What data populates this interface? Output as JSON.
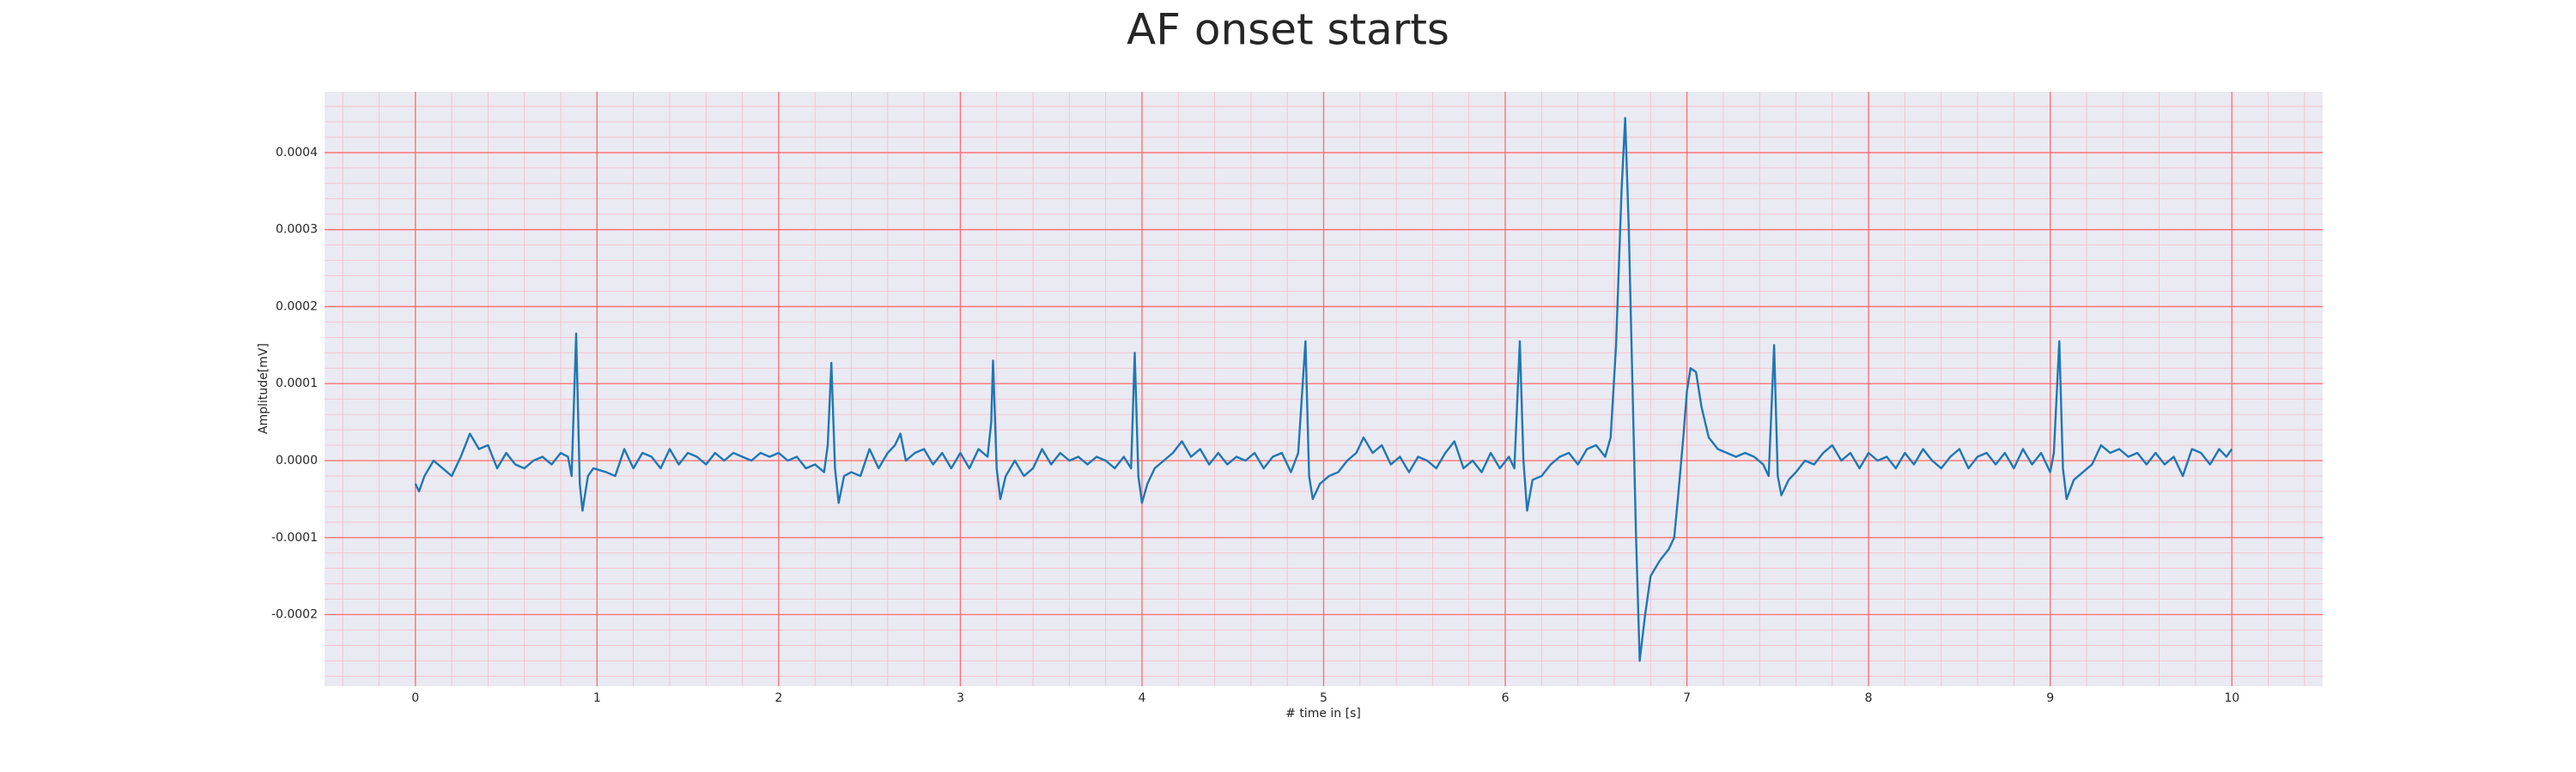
{
  "chart_data": {
    "type": "line",
    "title": "AF onset starts",
    "xlabel": "# time in [s]",
    "ylabel": "Amplitude[mV]",
    "xlim": [
      -0.5,
      10.5
    ],
    "ylim": [
      -0.000293,
      0.000479
    ],
    "xticks": [
      0,
      1,
      2,
      3,
      4,
      5,
      6,
      7,
      8,
      9,
      10
    ],
    "yticks": [
      {
        "value": -0.0002,
        "label": "-0.0002"
      },
      {
        "value": -0.0001,
        "label": "-0.0001"
      },
      {
        "value": 0,
        "label": "0.0000"
      },
      {
        "value": 0.0001,
        "label": "0.0001"
      },
      {
        "value": 0.0002,
        "label": "0.0002"
      },
      {
        "value": 0.0003,
        "label": "0.0003"
      },
      {
        "value": 0.0004,
        "label": "0.0004"
      }
    ],
    "grid": true,
    "minor_grid": true,
    "grid_color": "#ff6b6b",
    "minor_grid_color": "#f7bcc8",
    "background": "#eaeaf2",
    "x": [
      0,
      0.02,
      0.05,
      0.1,
      0.15,
      0.2,
      0.25,
      0.3,
      0.35,
      0.4,
      0.45,
      0.5,
      0.55,
      0.6,
      0.65,
      0.7,
      0.75,
      0.8,
      0.84,
      0.86,
      0.885,
      0.905,
      0.92,
      0.95,
      0.98,
      1.05,
      1.1,
      1.15,
      1.2,
      1.25,
      1.3,
      1.35,
      1.4,
      1.45,
      1.5,
      1.55,
      1.6,
      1.65,
      1.7,
      1.75,
      1.8,
      1.85,
      1.9,
      1.95,
      2.0,
      2.05,
      2.1,
      2.15,
      2.2,
      2.25,
      2.27,
      2.29,
      2.31,
      2.33,
      2.36,
      2.4,
      2.45,
      2.5,
      2.55,
      2.6,
      2.64,
      2.67,
      2.7,
      2.75,
      2.8,
      2.85,
      2.9,
      2.95,
      3.0,
      3.05,
      3.1,
      3.15,
      3.17,
      3.18,
      3.2,
      3.22,
      3.25,
      3.3,
      3.35,
      3.4,
      3.45,
      3.5,
      3.55,
      3.6,
      3.65,
      3.7,
      3.75,
      3.8,
      3.85,
      3.9,
      3.94,
      3.96,
      3.98,
      4.0,
      4.03,
      4.07,
      4.12,
      4.17,
      4.22,
      4.27,
      4.32,
      4.37,
      4.42,
      4.47,
      4.52,
      4.57,
      4.62,
      4.67,
      4.72,
      4.77,
      4.82,
      4.86,
      4.9,
      4.92,
      4.94,
      4.98,
      5.03,
      5.08,
      5.13,
      5.18,
      5.22,
      5.27,
      5.32,
      5.37,
      5.42,
      5.47,
      5.52,
      5.57,
      5.62,
      5.67,
      5.72,
      5.77,
      5.82,
      5.87,
      5.92,
      5.97,
      6.02,
      6.05,
      6.08,
      6.1,
      6.12,
      6.15,
      6.2,
      6.25,
      6.3,
      6.35,
      6.4,
      6.45,
      6.5,
      6.55,
      6.58,
      6.61,
      6.64,
      6.66,
      6.68,
      6.7,
      6.72,
      6.74,
      6.77,
      6.8,
      6.85,
      6.9,
      6.93,
      6.95,
      6.98,
      7.0,
      7.02,
      7.05,
      7.08,
      7.12,
      7.17,
      7.22,
      7.27,
      7.32,
      7.37,
      7.42,
      7.45,
      7.48,
      7.5,
      7.52,
      7.56,
      7.6,
      7.65,
      7.7,
      7.75,
      7.8,
      7.85,
      7.9,
      7.95,
      8.0,
      8.05,
      8.1,
      8.15,
      8.2,
      8.25,
      8.3,
      8.35,
      8.4,
      8.45,
      8.5,
      8.55,
      8.6,
      8.65,
      8.7,
      8.75,
      8.8,
      8.85,
      8.9,
      8.95,
      9.0,
      9.02,
      9.05,
      9.07,
      9.09,
      9.13,
      9.18,
      9.23,
      9.28,
      9.33,
      9.38,
      9.43,
      9.48,
      9.53,
      9.58,
      9.63,
      9.68,
      9.73,
      9.78,
      9.83,
      9.88,
      9.93,
      9.97,
      10.0
    ],
    "series": [
      {
        "color": "#1f77b4",
        "values": [
          -3e-05,
          -4e-05,
          -2e-05,
          0.0,
          -1e-05,
          -2e-05,
          5e-06,
          3.5e-05,
          1.5e-05,
          2e-05,
          -1e-05,
          1e-05,
          -5e-06,
          -1e-05,
          0.0,
          5e-06,
          -5e-06,
          1e-05,
          5e-06,
          -2e-05,
          0.000165,
          -3e-05,
          -6.5e-05,
          -2e-05,
          -1e-05,
          -1.5e-05,
          -2e-05,
          1.5e-05,
          -1e-05,
          1e-05,
          5e-06,
          -1e-05,
          1.5e-05,
          -5e-06,
          1e-05,
          5e-06,
          -5e-06,
          1e-05,
          0.0,
          1e-05,
          5e-06,
          0.0,
          1e-05,
          5e-06,
          1e-05,
          0.0,
          5e-06,
          -1e-05,
          -5e-06,
          -1.5e-05,
          2e-05,
          0.000127,
          -1e-05,
          -5.5e-05,
          -2e-05,
          -1.5e-05,
          -2e-05,
          1.5e-05,
          -1e-05,
          1e-05,
          2e-05,
          3.5e-05,
          0.0,
          1e-05,
          1.5e-05,
          -5e-06,
          1e-05,
          -1e-05,
          1e-05,
          -1e-05,
          1.5e-05,
          5e-06,
          5e-05,
          0.00013,
          -1e-05,
          -5e-05,
          -2e-05,
          0.0,
          -2e-05,
          -1e-05,
          1.5e-05,
          -5e-06,
          1e-05,
          0.0,
          5e-06,
          -5e-06,
          5e-06,
          0.0,
          -1e-05,
          5e-06,
          -1e-05,
          0.00014,
          -2e-05,
          -5.5e-05,
          -3e-05,
          -1e-05,
          0.0,
          1e-05,
          2.5e-05,
          5e-06,
          1.5e-05,
          -5e-06,
          1e-05,
          -5e-06,
          5e-06,
          0.0,
          1e-05,
          -1e-05,
          5e-06,
          1e-05,
          -1.5e-05,
          1e-05,
          0.000155,
          -2e-05,
          -5e-05,
          -3e-05,
          -2e-05,
          -1.5e-05,
          0.0,
          1e-05,
          3e-05,
          1e-05,
          2e-05,
          -5e-06,
          5e-06,
          -1.5e-05,
          5e-06,
          0.0,
          -1e-05,
          1e-05,
          2.5e-05,
          -1e-05,
          0.0,
          -1.5e-05,
          1e-05,
          -1e-05,
          5e-06,
          -1e-05,
          0.000155,
          0.0,
          -6.5e-05,
          -2.5e-05,
          -2e-05,
          -5e-06,
          5e-06,
          1e-05,
          -5e-06,
          1.5e-05,
          2e-05,
          5e-06,
          3e-05,
          0.00015,
          0.00035,
          0.000445,
          0.0003,
          0.0001,
          -0.0001,
          -0.00026,
          -0.0002,
          -0.00015,
          -0.00013,
          -0.000115,
          -0.0001,
          -5e-05,
          3e-05,
          9e-05,
          0.00012,
          0.000115,
          7e-05,
          3e-05,
          1.5e-05,
          1e-05,
          5e-06,
          1e-05,
          5e-06,
          -5e-06,
          -2e-05,
          0.00015,
          -2e-05,
          -4.5e-05,
          -2.5e-05,
          -1.5e-05,
          0.0,
          -5e-06,
          1e-05,
          2e-05,
          0.0,
          1e-05,
          -1e-05,
          1e-05,
          0.0,
          5e-06,
          -1e-05,
          1e-05,
          -5e-06,
          1.5e-05,
          0.0,
          -1e-05,
          5e-06,
          1.5e-05,
          -1e-05,
          5e-06,
          1e-05,
          -5e-06,
          1e-05,
          -1e-05,
          1.5e-05,
          -5e-06,
          1e-05,
          -1.5e-05,
          1e-05,
          0.000155,
          -1e-05,
          -5e-05,
          -2.5e-05,
          -1.5e-05,
          -5e-06,
          2e-05,
          1e-05,
          1.5e-05,
          5e-06,
          1e-05,
          -5e-06,
          1e-05,
          -5e-06,
          5e-06,
          -2e-05,
          1.5e-05,
          1e-05,
          -5e-06,
          1.5e-05,
          5e-06,
          1.5e-05
        ]
      }
    ]
  }
}
